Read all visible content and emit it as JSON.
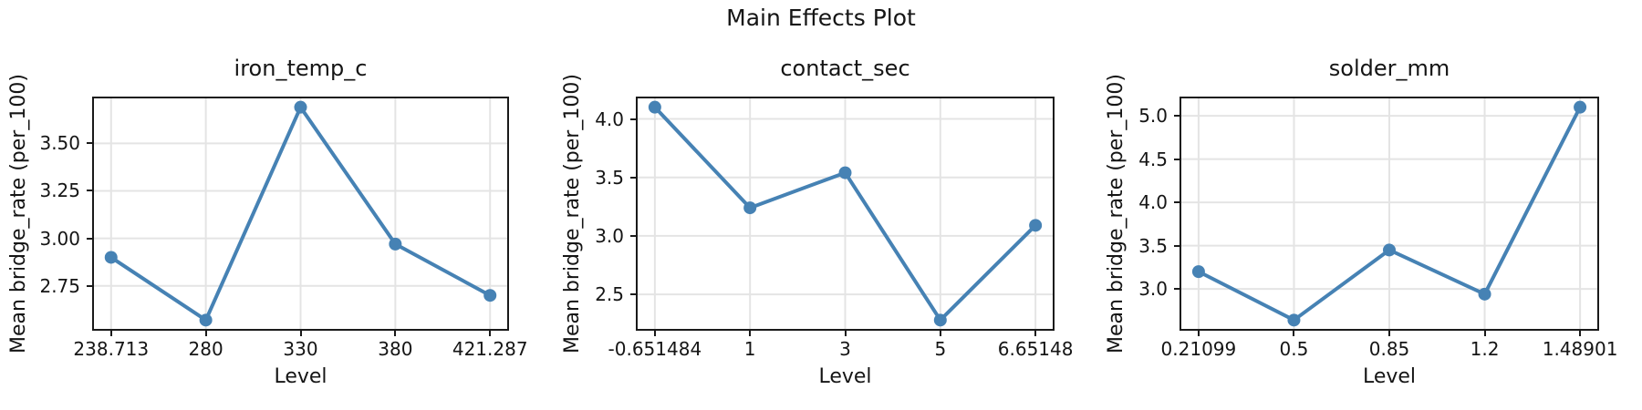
{
  "figure": {
    "title": "Main Effects Plot"
  },
  "style": {
    "line_color": "#4682B4",
    "grid_color": "#e4e4e4",
    "spine_color": "#1a1a1a",
    "text_color": "#151515",
    "background": "#ffffff"
  },
  "chart_data": [
    {
      "type": "line",
      "title": "iron_temp_c",
      "xlabel": "Level",
      "ylabel": "Mean bridge_rate (per_100)",
      "categories": [
        "238.713",
        "280",
        "330",
        "380",
        "421.287"
      ],
      "values": [
        2.9,
        2.57,
        3.69,
        2.97,
        2.7
      ],
      "ytick_labels": [
        "2.75",
        "3.00",
        "3.25",
        "3.50"
      ],
      "ytick_values": [
        2.75,
        3.0,
        3.25,
        3.5
      ],
      "ylim": [
        2.514,
        3.746
      ],
      "grid": true,
      "marker": "circle",
      "legend": "none"
    },
    {
      "type": "line",
      "title": "contact_sec",
      "xlabel": "Level",
      "ylabel": "Mean bridge_rate (per_100)",
      "categories": [
        "-0.651484",
        "1",
        "3",
        "5",
        "6.65148"
      ],
      "values": [
        4.1,
        3.24,
        3.54,
        2.28,
        3.09
      ],
      "ytick_labels": [
        "2.5",
        "3.0",
        "3.5",
        "4.0"
      ],
      "ytick_values": [
        2.5,
        3.0,
        3.5,
        4.0
      ],
      "ylim": [
        2.189,
        4.191
      ],
      "grid": true,
      "marker": "circle",
      "legend": "none"
    },
    {
      "type": "line",
      "title": "solder_mm",
      "xlabel": "Level",
      "ylabel": "Mean bridge_rate (per_100)",
      "categories": [
        "0.21099",
        "0.5",
        "0.85",
        "1.2",
        "1.48901"
      ],
      "values": [
        3.2,
        2.64,
        3.45,
        2.94,
        5.1
      ],
      "ytick_labels": [
        "3.0",
        "3.5",
        "4.0",
        "4.5",
        "5.0"
      ],
      "ytick_values": [
        3.0,
        3.5,
        4.0,
        4.5,
        5.0
      ],
      "ylim": [
        2.517,
        5.223
      ],
      "grid": true,
      "marker": "circle",
      "legend": "none"
    }
  ]
}
